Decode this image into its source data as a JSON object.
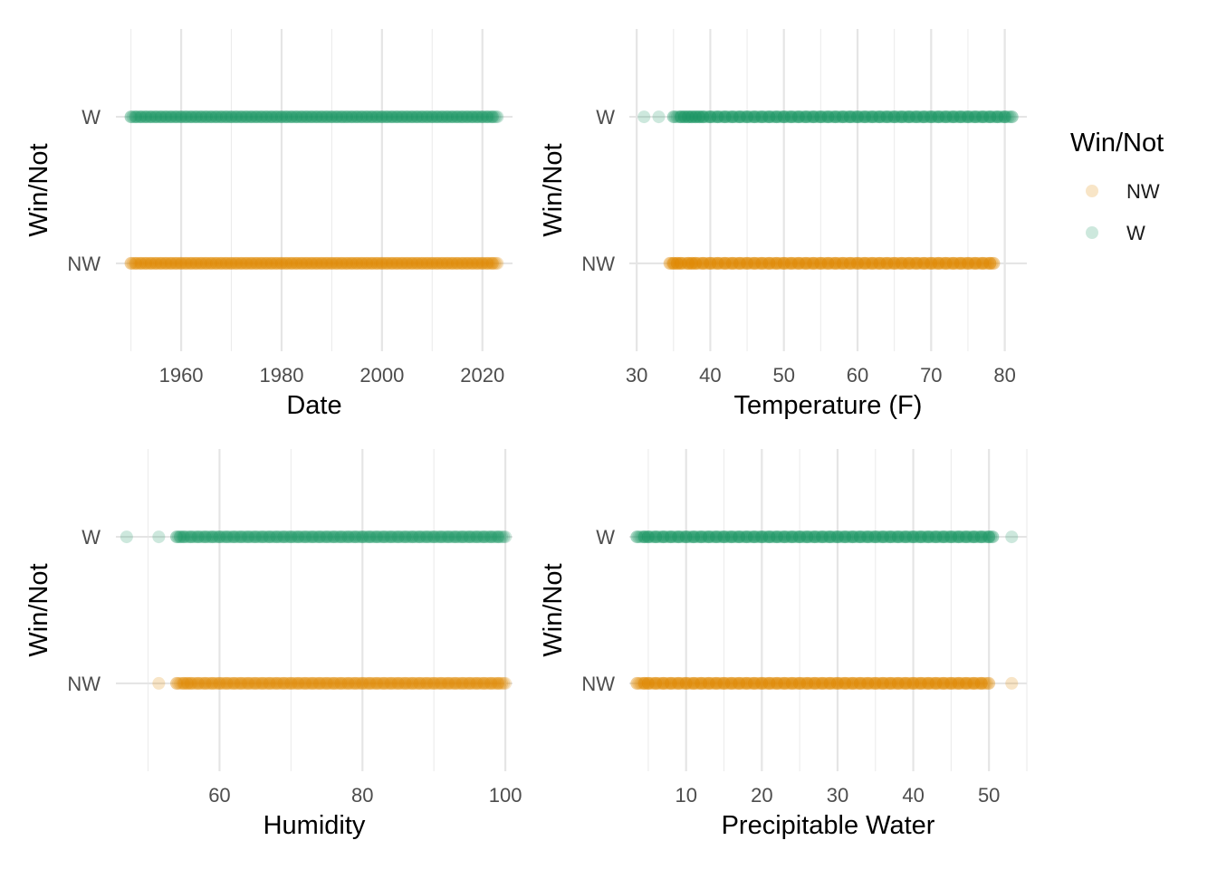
{
  "legend": {
    "title": "Win/Not",
    "items": [
      {
        "label": "NW",
        "color": "#E08A00"
      },
      {
        "label": "W",
        "color": "#1A9464"
      }
    ]
  },
  "colors": {
    "NW": "#E08A00",
    "W": "#1A9464"
  },
  "chart_data": [
    {
      "type": "scatter",
      "xlabel": "Date",
      "ylabel": "Win/Not",
      "categories": [
        "NW",
        "W"
      ],
      "xlim": [
        1947,
        2026
      ],
      "xticks": [
        1960,
        1980,
        2000,
        2020
      ],
      "xtick_labels": [
        "1960",
        "1980",
        "2000",
        "2020"
      ],
      "minor_xticks": [
        1950,
        1970,
        1990,
        2010
      ],
      "series": [
        {
          "name": "W",
          "x": [
            1950,
            1951,
            1952,
            1953,
            1954,
            1955,
            1956,
            1957,
            1958,
            1959,
            1960,
            1961,
            1962,
            1963,
            1964,
            1965,
            1966,
            1967,
            1968,
            1969,
            1970,
            1971,
            1972,
            1973,
            1974,
            1975,
            1976,
            1977,
            1978,
            1979,
            1980,
            1981,
            1982,
            1983,
            1984,
            1985,
            1986,
            1987,
            1988,
            1989,
            1990,
            1991,
            1992,
            1993,
            1994,
            1995,
            1996,
            1997,
            1998,
            1999,
            2000,
            2001,
            2002,
            2003,
            2004,
            2005,
            2006,
            2007,
            2008,
            2009,
            2010,
            2011,
            2012,
            2013,
            2014,
            2015,
            2016,
            2017,
            2018,
            2019,
            2020,
            2021,
            2022,
            2023
          ]
        },
        {
          "name": "NW",
          "x": [
            1950,
            1951,
            1952,
            1953,
            1954,
            1955,
            1956,
            1957,
            1958,
            1959,
            1960,
            1961,
            1962,
            1963,
            1964,
            1965,
            1966,
            1967,
            1968,
            1969,
            1970,
            1971,
            1972,
            1973,
            1974,
            1975,
            1976,
            1977,
            1978,
            1979,
            1980,
            1981,
            1982,
            1983,
            1984,
            1985,
            1986,
            1987,
            1988,
            1989,
            1990,
            1991,
            1992,
            1993,
            1994,
            1995,
            1996,
            1997,
            1998,
            1999,
            2000,
            2001,
            2002,
            2003,
            2004,
            2005,
            2006,
            2007,
            2008,
            2009,
            2010,
            2011,
            2012,
            2013,
            2014,
            2015,
            2016,
            2017,
            2018,
            2019,
            2020,
            2021,
            2022,
            2023
          ]
        }
      ]
    },
    {
      "type": "scatter",
      "xlabel": "Temperature (F)",
      "ylabel": "Win/Not",
      "categories": [
        "NW",
        "W"
      ],
      "xlim": [
        29,
        83
      ],
      "xticks": [
        30,
        40,
        50,
        60,
        70,
        80
      ],
      "xtick_labels": [
        "30",
        "40",
        "50",
        "60",
        "70",
        "80"
      ],
      "minor_xticks": [
        35,
        45,
        55,
        65,
        75
      ],
      "series": [
        {
          "name": "W",
          "x": [
            31,
            33,
            35,
            36,
            36.5,
            37,
            37.5,
            38,
            38.5,
            39,
            40,
            41,
            42,
            43,
            44,
            45,
            46,
            47,
            48,
            49,
            50,
            51,
            52,
            53,
            54,
            55,
            56,
            57,
            58,
            59,
            60,
            61,
            62,
            63,
            64,
            65,
            66,
            67,
            68,
            69,
            70,
            71,
            72,
            73,
            74,
            75,
            76,
            77,
            78,
            79,
            80,
            81
          ]
        },
        {
          "name": "NW",
          "x": [
            34.5,
            35,
            35.5,
            36,
            37,
            37.5,
            38,
            39,
            40,
            41,
            42,
            43,
            44,
            45,
            46,
            47,
            48,
            49,
            50,
            51,
            52,
            53,
            54,
            55,
            56,
            57,
            58,
            59,
            60,
            61,
            62,
            63,
            64,
            65,
            66,
            67,
            68,
            69,
            70,
            71,
            72,
            73,
            74,
            75,
            76,
            77,
            78,
            78.5
          ]
        }
      ]
    },
    {
      "type": "scatter",
      "xlabel": "Humidity",
      "ylabel": "Win/Not",
      "categories": [
        "NW",
        "W"
      ],
      "xlim": [
        45.5,
        101
      ],
      "xticks": [
        60,
        80,
        100
      ],
      "xtick_labels": [
        "60",
        "80",
        "100"
      ],
      "minor_xticks": [
        50,
        70,
        90
      ],
      "series": [
        {
          "name": "W",
          "x": [
            47,
            51.5,
            54,
            54.5,
            55,
            56,
            57,
            58,
            59,
            60,
            61,
            62,
            63,
            64,
            65,
            66,
            67,
            68,
            69,
            70,
            71,
            72,
            73,
            74,
            75,
            76,
            77,
            78,
            79,
            80,
            81,
            82,
            83,
            84,
            85,
            86,
            87,
            88,
            89,
            90,
            91,
            92,
            93,
            94,
            95,
            96,
            97,
            98,
            99,
            100
          ]
        },
        {
          "name": "NW",
          "x": [
            51.5,
            54,
            55,
            55.5,
            56,
            57,
            58,
            59,
            60,
            61,
            62,
            63,
            64,
            65,
            66,
            67,
            68,
            69,
            70,
            71,
            72,
            73,
            74,
            75,
            76,
            77,
            78,
            79,
            80,
            81,
            82,
            83,
            84,
            85,
            86,
            87,
            88,
            89,
            90,
            91,
            92,
            93,
            94,
            95,
            96,
            97,
            98,
            99,
            100
          ]
        }
      ]
    },
    {
      "type": "scatter",
      "xlabel": "Precipitable Water",
      "ylabel": "Win/Not",
      "categories": [
        "NW",
        "W"
      ],
      "xlim": [
        2.5,
        55
      ],
      "xticks": [
        10,
        20,
        30,
        40,
        50
      ],
      "xtick_labels": [
        "10",
        "20",
        "30",
        "40",
        "50"
      ],
      "minor_xticks": [
        5,
        15,
        25,
        35,
        45,
        55
      ],
      "series": [
        {
          "name": "W",
          "x": [
            3.5,
            4.5,
            5,
            6,
            7,
            8,
            9,
            10,
            11,
            12,
            13,
            14,
            15,
            16,
            17,
            18,
            19,
            20,
            21,
            22,
            23,
            24,
            25,
            26,
            27,
            28,
            29,
            30,
            31,
            32,
            33,
            34,
            35,
            36,
            37,
            38,
            39,
            40,
            41,
            42,
            43,
            44,
            45,
            46,
            47,
            48,
            49,
            50,
            50.5,
            53
          ]
        },
        {
          "name": "NW",
          "x": [
            3.5,
            4.5,
            5,
            6,
            7,
            8,
            9,
            10,
            11,
            12,
            13,
            14,
            15,
            16,
            17,
            18,
            19,
            20,
            21,
            22,
            23,
            24,
            25,
            26,
            27,
            28,
            29,
            30,
            31,
            32,
            33,
            34,
            35,
            36,
            37,
            38,
            39,
            40,
            41,
            42,
            43,
            44,
            45,
            46,
            47,
            48,
            49,
            50,
            53
          ]
        }
      ]
    }
  ]
}
